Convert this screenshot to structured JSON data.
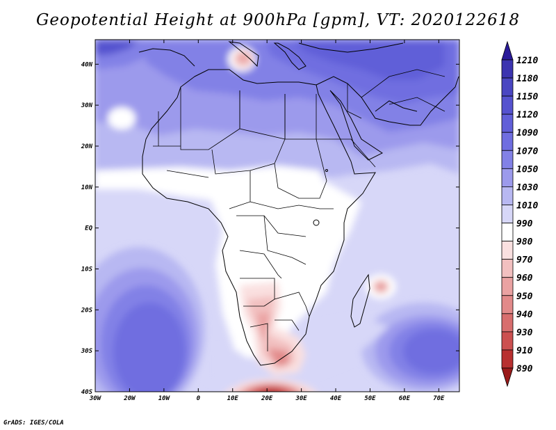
{
  "title": "Geopotential Height at 900hPa [gpm], VT: 2020122618",
  "credit": "GrADS: IGES/COLA",
  "map": {
    "lon_range": [
      -30,
      76
    ],
    "lat_range": [
      -40,
      46
    ],
    "lat_ticks": [
      "40N",
      "30N",
      "20N",
      "10N",
      "EQ",
      "10S",
      "20S",
      "30S",
      "40S"
    ],
    "lon_ticks": [
      "30W",
      "20W",
      "10W",
      "0",
      "10E",
      "20E",
      "30E",
      "40E",
      "50E",
      "60E",
      "70E"
    ]
  },
  "colorbar": {
    "levels": [
      "1210",
      "1180",
      "1150",
      "1120",
      "1090",
      "1070",
      "1050",
      "1030",
      "1010",
      "990",
      "980",
      "970",
      "960",
      "950",
      "940",
      "930",
      "910",
      "890"
    ],
    "colors": [
      "#2a1a9a",
      "#3c34b0",
      "#4a46c2",
      "#5552cf",
      "#615fd8",
      "#6f6ee0",
      "#8281e6",
      "#9c9aec",
      "#b8b8f2",
      "#d7d7f8",
      "#ffffff",
      "#fae0e0",
      "#f2c0c0",
      "#eaa2a2",
      "#e28a8a",
      "#d86e6e",
      "#cc5050",
      "#b83030",
      "#9a1a1a"
    ]
  }
}
